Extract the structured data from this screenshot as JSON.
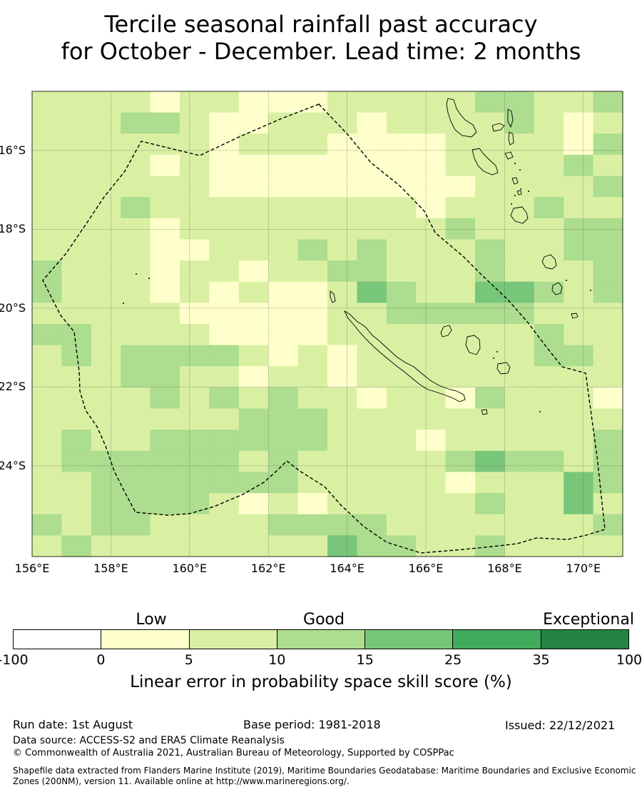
{
  "title": {
    "line1": "Tercile seasonal rainfall past accuracy",
    "line2": "for October - December. Lead time: 2 months"
  },
  "map": {
    "lon_range": [
      156,
      171
    ],
    "lat_range": [
      -14.5,
      -26.3
    ],
    "lat_labels": [
      "16°S",
      "18°S",
      "20°S",
      "22°S",
      "24°S"
    ],
    "lat_values": [
      -16,
      -18,
      -20,
      -22,
      -24
    ],
    "lon_labels": [
      "156°E",
      "158°E",
      "160°E",
      "162°E",
      "164°E",
      "166°E",
      "168°E",
      "170°E"
    ],
    "lon_values": [
      156,
      158,
      160,
      162,
      164,
      166,
      168,
      170
    ],
    "grid": true,
    "skill_grid": [
      [
        1,
        1,
        1,
        1,
        0,
        1,
        1,
        0,
        0,
        0,
        1,
        1,
        1,
        1,
        1,
        2,
        2,
        1,
        1,
        2
      ],
      [
        1,
        1,
        1,
        2,
        2,
        1,
        0,
        0,
        1,
        1,
        1,
        0,
        1,
        1,
        1,
        1,
        2,
        1,
        0,
        1
      ],
      [
        1,
        1,
        1,
        1,
        1,
        1,
        0,
        1,
        1,
        1,
        0,
        0,
        0,
        0,
        1,
        1,
        1,
        1,
        0,
        2
      ],
      [
        1,
        1,
        1,
        1,
        0,
        1,
        0,
        0,
        0,
        0,
        0,
        0,
        0,
        0,
        1,
        1,
        1,
        1,
        2,
        1
      ],
      [
        1,
        1,
        1,
        1,
        1,
        1,
        0,
        0,
        0,
        0,
        0,
        0,
        0,
        0,
        0,
        1,
        1,
        1,
        1,
        2
      ],
      [
        1,
        1,
        1,
        2,
        1,
        1,
        1,
        1,
        1,
        1,
        1,
        1,
        1,
        0,
        1,
        1,
        1,
        2,
        1,
        1
      ],
      [
        1,
        1,
        1,
        1,
        0,
        1,
        1,
        1,
        1,
        1,
        1,
        1,
        1,
        1,
        2,
        1,
        1,
        1,
        2,
        2
      ],
      [
        1,
        1,
        1,
        1,
        0,
        0,
        1,
        1,
        1,
        2,
        1,
        2,
        1,
        1,
        1,
        2,
        1,
        1,
        2,
        2
      ],
      [
        2,
        1,
        1,
        1,
        0,
        1,
        1,
        0,
        1,
        1,
        2,
        2,
        1,
        1,
        1,
        2,
        1,
        1,
        1,
        2
      ],
      [
        2,
        1,
        1,
        1,
        0,
        1,
        0,
        1,
        0,
        0,
        1,
        3,
        2,
        1,
        1,
        3,
        3,
        2,
        1,
        2
      ],
      [
        1,
        1,
        1,
        1,
        1,
        0,
        0,
        0,
        0,
        0,
        1,
        1,
        2,
        2,
        2,
        2,
        2,
        1,
        1,
        1
      ],
      [
        2,
        2,
        1,
        1,
        1,
        1,
        0,
        0,
        0,
        0,
        1,
        1,
        1,
        1,
        1,
        1,
        1,
        2,
        1,
        1
      ],
      [
        1,
        2,
        1,
        2,
        2,
        2,
        2,
        1,
        0,
        1,
        0,
        1,
        1,
        1,
        1,
        1,
        1,
        2,
        2,
        1
      ],
      [
        1,
        1,
        1,
        2,
        2,
        1,
        1,
        0,
        1,
        1,
        0,
        1,
        1,
        1,
        1,
        1,
        1,
        1,
        1,
        1
      ],
      [
        1,
        1,
        1,
        1,
        2,
        1,
        2,
        1,
        2,
        1,
        1,
        0,
        1,
        1,
        0,
        2,
        1,
        1,
        1,
        0
      ],
      [
        1,
        1,
        1,
        1,
        1,
        1,
        1,
        2,
        2,
        2,
        1,
        1,
        1,
        1,
        1,
        1,
        1,
        1,
        1,
        1
      ],
      [
        1,
        2,
        1,
        1,
        2,
        2,
        2,
        2,
        2,
        2,
        1,
        1,
        1,
        0,
        1,
        1,
        1,
        1,
        1,
        2
      ],
      [
        1,
        2,
        2,
        2,
        2,
        2,
        2,
        1,
        2,
        1,
        1,
        1,
        1,
        1,
        2,
        3,
        2,
        2,
        1,
        2
      ],
      [
        1,
        1,
        2,
        2,
        2,
        2,
        2,
        2,
        2,
        1,
        1,
        1,
        1,
        1,
        0,
        1,
        1,
        1,
        3,
        2
      ],
      [
        1,
        1,
        2,
        2,
        2,
        2,
        1,
        0,
        1,
        0,
        1,
        1,
        1,
        1,
        1,
        2,
        1,
        1,
        3,
        1
      ],
      [
        2,
        1,
        2,
        2,
        1,
        1,
        1,
        1,
        2,
        2,
        2,
        2,
        1,
        1,
        1,
        1,
        1,
        1,
        1,
        2
      ],
      [
        1,
        2,
        1,
        1,
        1,
        1,
        1,
        1,
        1,
        1,
        3,
        2,
        2,
        1,
        1,
        2,
        1,
        1,
        1,
        1
      ]
    ]
  },
  "colorbar": {
    "category_labels": [
      "Low",
      "Good",
      "Exceptional"
    ],
    "bounds": [
      "-100",
      "0",
      "5",
      "10",
      "15",
      "25",
      "35",
      "100"
    ],
    "colors": [
      "#ffffff",
      "#ffffcc",
      "#d9f0a3",
      "#addd8e",
      "#78c679",
      "#41ab5d",
      "#238443"
    ],
    "label": "Linear error in probability space skill score (%)"
  },
  "footer": {
    "run_date": "Run date: 1st August",
    "base_period": "Base period: 1981-2018",
    "issued": "Issued: 22/12/2021",
    "data_source": "Data source: ACCESS-S2 and ERA5 Climate Reanalysis",
    "copyright": "© Commonwealth of Australia 2021, Australian Bureau of Meteorology, Supported by COSPPac",
    "shapefile": "Shapefile data extracted from Flanders Marine Institute (2019), Maritime Boundaries Geodatabase: Maritime Boundaries and Exclusive Economic Zones (200NM), version 11. Available online at http://www.marineregions.org/."
  }
}
